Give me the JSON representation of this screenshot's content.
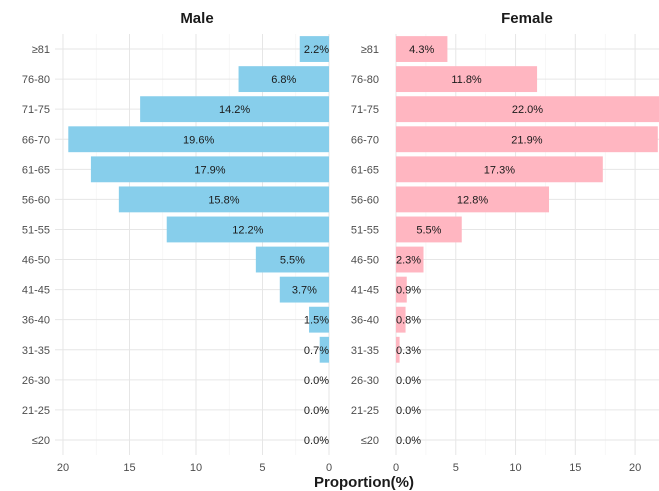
{
  "chart_data": {
    "type": "bar",
    "orientation": "horizontal",
    "layout": "population-pyramid",
    "xlabel": "Proportion(%)",
    "categories": [
      "≥81",
      "76-80",
      "71-75",
      "66-70",
      "61-65",
      "56-60",
      "51-55",
      "46-50",
      "41-45",
      "36-40",
      "31-35",
      "26-30",
      "21-25",
      "≤20"
    ],
    "panels": [
      {
        "name": "Male",
        "title": "Male",
        "color": "#87CEEB",
        "direction": "reversed",
        "xlim": [
          0,
          20.6
        ],
        "ticks": [
          20,
          15,
          10,
          5,
          0
        ],
        "values": [
          2.2,
          6.8,
          14.2,
          19.6,
          17.9,
          15.8,
          12.2,
          5.5,
          3.7,
          1.5,
          0.7,
          0.0,
          0.0,
          0.0
        ],
        "labels": [
          "2.2%",
          "6.8%",
          "14.2%",
          "19.6%",
          "17.9%",
          "15.8%",
          "12.2%",
          "5.5%",
          "3.7%",
          "1.5%",
          "0.7%",
          "0.0%",
          "0.0%",
          "0.0%"
        ]
      },
      {
        "name": "Female",
        "title": "Female",
        "color": "#FFB6C1",
        "direction": "normal",
        "xlim": [
          0,
          22.0
        ],
        "ticks": [
          0,
          5,
          10,
          15,
          20
        ],
        "values": [
          4.3,
          11.8,
          22.0,
          21.9,
          17.3,
          12.8,
          5.5,
          2.3,
          0.9,
          0.8,
          0.3,
          0.0,
          0.0,
          0.0
        ],
        "labels": [
          "4.3%",
          "11.8%",
          "22.0%",
          "21.9%",
          "17.3%",
          "12.8%",
          "5.5%",
          "2.3%",
          "0.9%",
          "0.8%",
          "0.3%",
          "0.0%",
          "0.0%",
          "0.0%"
        ]
      }
    ],
    "grid": true,
    "legend": "none"
  }
}
